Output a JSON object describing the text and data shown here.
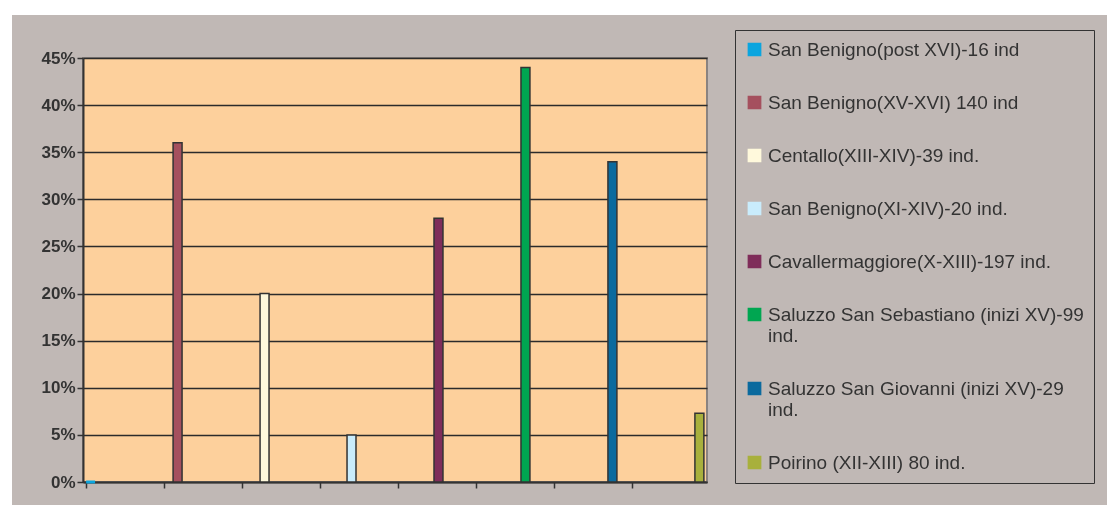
{
  "chart_data": {
    "type": "bar",
    "categories": [
      null,
      null,
      null,
      null,
      null,
      null,
      null,
      null
    ],
    "series": [
      {
        "name": "San Benigno(post XVI)-16 ind",
        "color": "#0ba5df",
        "values": [
          0,
          null,
          null,
          null,
          null,
          null,
          null,
          null
        ]
      },
      {
        "name": "San Benigno(XV-XVI) 140 ind",
        "color": "#a5505e",
        "values": [
          null,
          36,
          null,
          null,
          null,
          null,
          null,
          null
        ]
      },
      {
        "name": "Centallo(XIII-XIV)-39 ind.",
        "color": "#fff9dc",
        "values": [
          null,
          null,
          20,
          null,
          null,
          null,
          null,
          null
        ]
      },
      {
        "name": "San Benigno(XI-XIV)-20 ind.",
        "color": "#c9ecfc",
        "values": [
          null,
          null,
          null,
          5,
          null,
          null,
          null,
          null
        ]
      },
      {
        "name": "Cavallermaggiore(X-XIII)-197 ind.",
        "color": "#7f2d5a",
        "values": [
          null,
          null,
          null,
          null,
          28,
          null,
          null,
          null
        ]
      },
      {
        "name": "Saluzzo San Sebastiano (inizi XV)-99 ind.",
        "color": "#00a651",
        "values": [
          null,
          null,
          null,
          null,
          null,
          44,
          null,
          null
        ]
      },
      {
        "name": "Saluzzo San Giovanni (inizi XV)-29 ind.",
        "color": "#0b6a9e",
        "values": [
          null,
          null,
          null,
          null,
          null,
          null,
          34,
          null
        ]
      },
      {
        "name": "Poirino (XII-XIII) 80 ind.",
        "color": "#a8b03c",
        "values": [
          null,
          null,
          null,
          null,
          null,
          null,
          null,
          7.3
        ]
      }
    ],
    "ylim": [
      0,
      45
    ],
    "yticks": [
      {
        "value": 0,
        "label": "0%"
      },
      {
        "value": 5,
        "label": "5%"
      },
      {
        "value": 10,
        "label": "10%"
      },
      {
        "value": 15,
        "label": "15%"
      },
      {
        "value": 20,
        "label": "20%"
      },
      {
        "value": 25,
        "label": "25%"
      },
      {
        "value": 30,
        "label": "30%"
      },
      {
        "value": 35,
        "label": "35%"
      },
      {
        "value": 40,
        "label": "40%"
      },
      {
        "value": 45,
        "label": "45%"
      }
    ],
    "grid": "y",
    "legend": "right",
    "tick_labels": "y"
  }
}
